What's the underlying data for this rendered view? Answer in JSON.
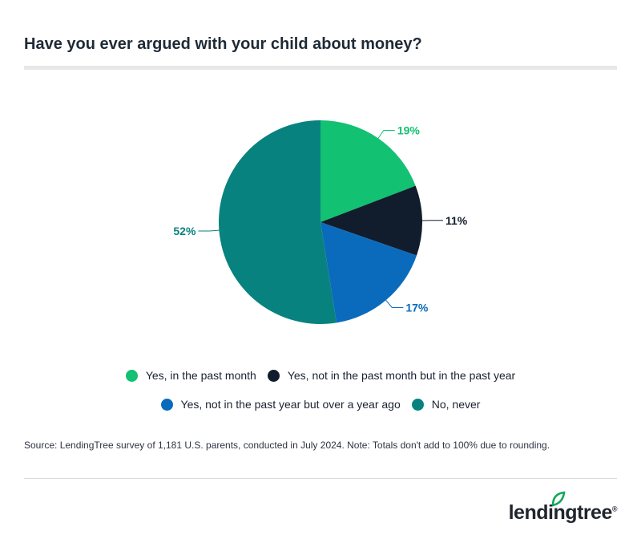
{
  "title": "Have you ever argued with your child about money?",
  "chart_data": {
    "type": "pie",
    "title": "Have you ever argued with your child about money?",
    "start_angle": "12 o'clock, clockwise",
    "slices": [
      {
        "label": "Yes, in the past month",
        "value": 19,
        "value_label": "19%",
        "color": "#12c172"
      },
      {
        "label": "Yes, not in the past month but in the past year",
        "value": 11,
        "value_label": "11%",
        "color": "#111d2d"
      },
      {
        "label": "Yes, not in the past year but over a year ago",
        "value": 17,
        "value_label": "17%",
        "color": "#0a6bbd"
      },
      {
        "label": "No, never",
        "value": 52,
        "value_label": "52%",
        "color": "#08827f"
      }
    ],
    "legend_position": "bottom"
  },
  "legend": {
    "row1": [
      {
        "label": "Yes, in the past month",
        "color": "#12c172"
      },
      {
        "label": "Yes, not in the past month but in the past year",
        "color": "#111d2d"
      }
    ],
    "row2": [
      {
        "label": "Yes, not in the past year but over a year ago",
        "color": "#0a6bbd"
      },
      {
        "label": "No, never",
        "color": "#08827f"
      }
    ]
  },
  "source": "Source: LendingTree survey of 1,181 U.S. parents, conducted in July 2024. Note: Totals don't add to 100% due to rounding.",
  "logo": {
    "text": "lendingtree",
    "mark": "®",
    "icon": "leaf-icon",
    "color": "#20262e",
    "icon_color": "#12a85b"
  }
}
